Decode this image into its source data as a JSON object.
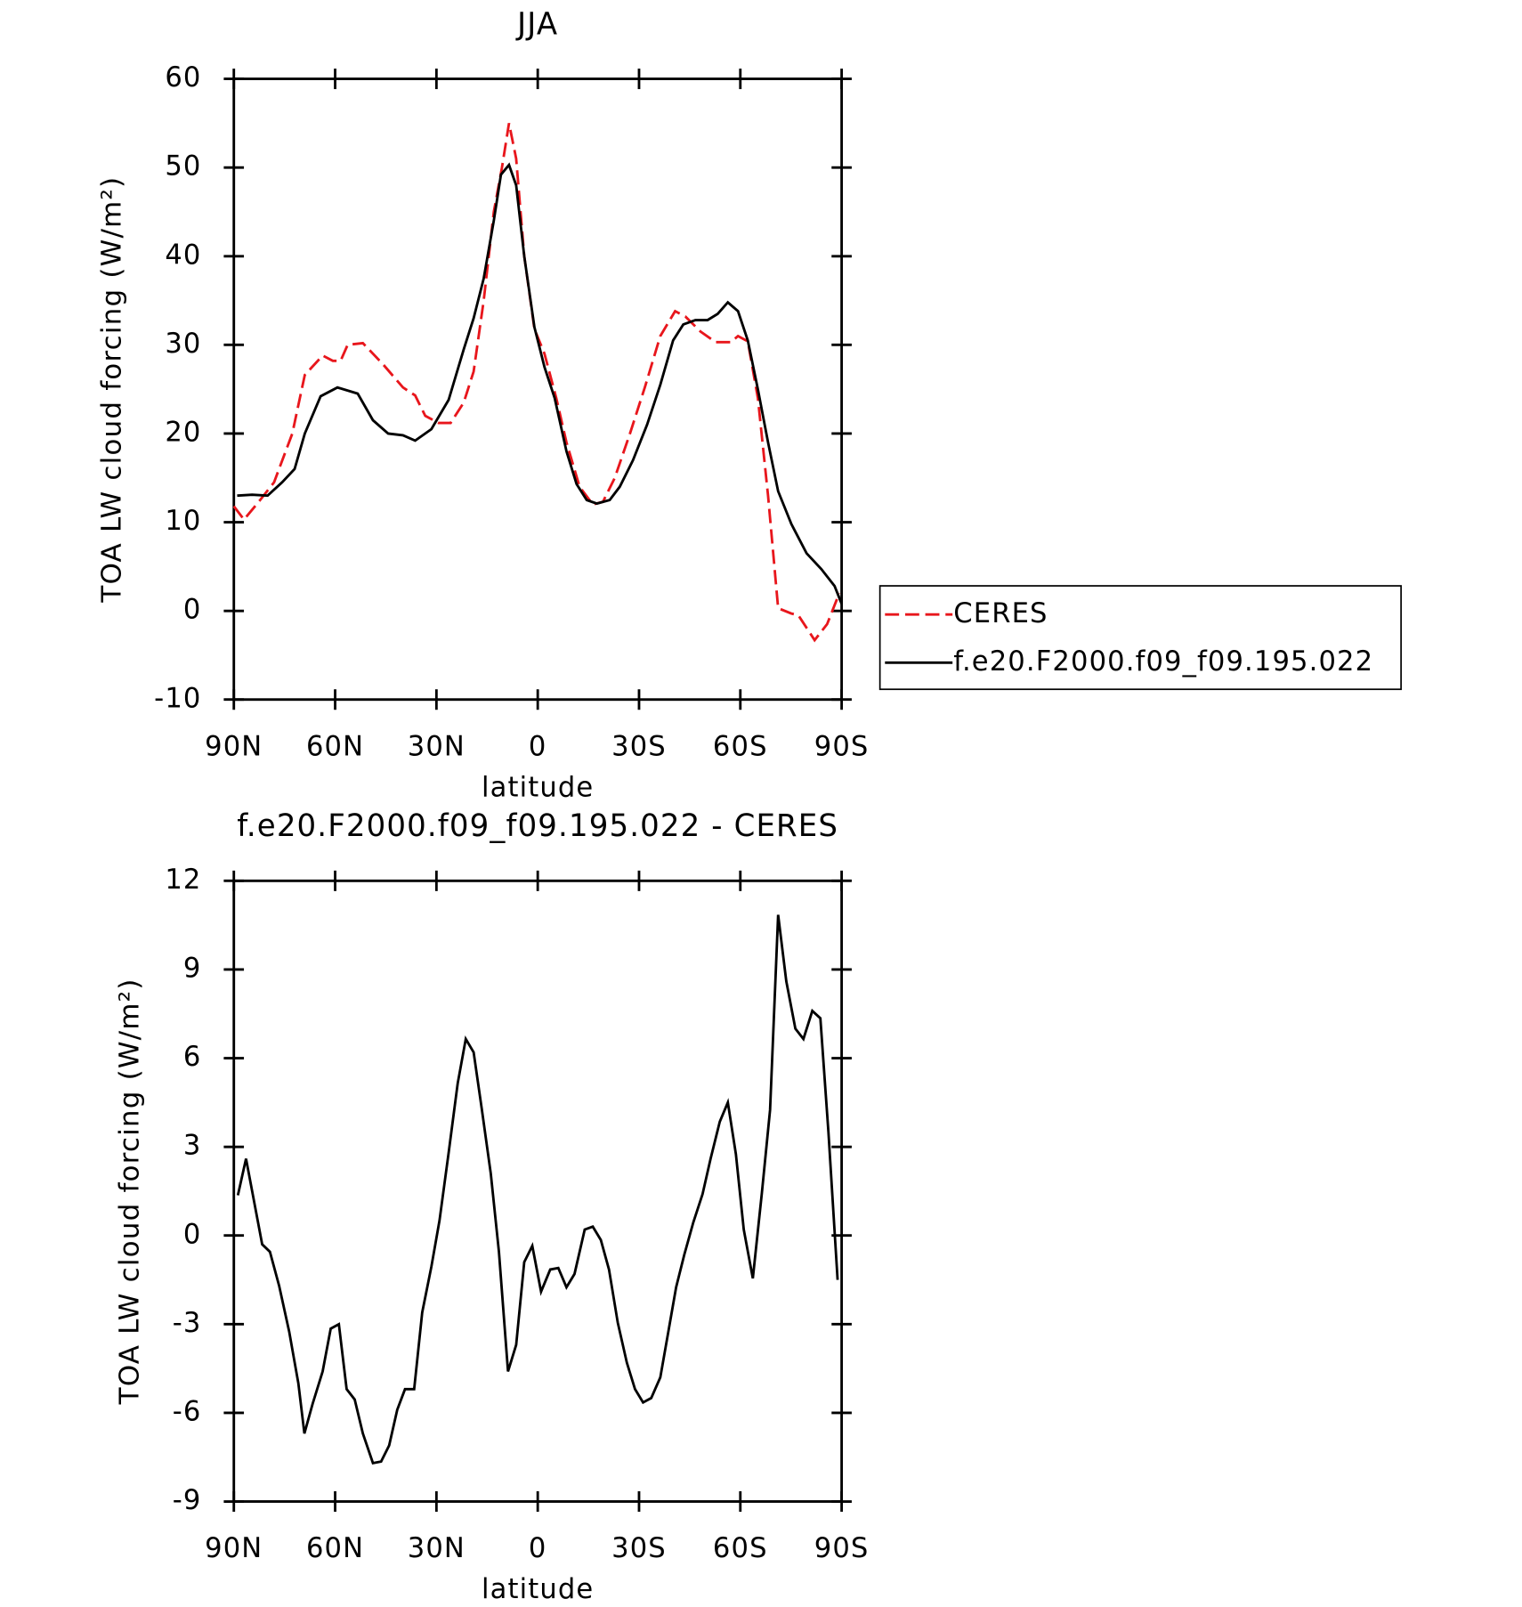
{
  "chart_data": [
    {
      "type": "line",
      "title": "JJA",
      "x_label": "latitude",
      "y_label": "TOA LW cloud forcing (W/m²)",
      "xlim": [
        90,
        -90
      ],
      "xticks": [
        {
          "value": 90,
          "label": "90N"
        },
        {
          "value": 60,
          "label": "60N"
        },
        {
          "value": 30,
          "label": "30N"
        },
        0,
        {
          "value": -30,
          "label": "30S"
        },
        {
          "value": -60,
          "label": "60S"
        },
        {
          "value": -90,
          "label": "90S"
        }
      ],
      "ylim": [
        -10,
        60
      ],
      "yticks": [
        -10,
        0,
        10,
        20,
        30,
        40,
        50,
        60
      ],
      "legend": "right",
      "series": [
        {
          "name": "CERES",
          "color": "#e8161c",
          "dash": true,
          "x": [
            90,
            87,
            82.2,
            78.1,
            72.7,
            69,
            63.7,
            60.7,
            58.4,
            56.3,
            51.8,
            45.8,
            39.9,
            36.3,
            33.3,
            29.4,
            25.8,
            21.9,
            19,
            16,
            13,
            10.6,
            8.5,
            6.4,
            4,
            1,
            -2,
            -5.5,
            -8.5,
            -12.4,
            -16.3,
            -19.3,
            -22.8,
            -27.3,
            -31.8,
            -36.3,
            -40.7,
            -43.7,
            -48.2,
            -52.7,
            -57.2,
            -59.3,
            -62.2,
            -65.2,
            -68.2,
            -71.2,
            -75.1,
            -77.2,
            -82,
            -85.7,
            -89.3
          ],
          "values": [
            11.8,
            10.3,
            12.5,
            14.5,
            20,
            26.6,
            28.8,
            28.2,
            28.2,
            30,
            30.2,
            27.8,
            25.2,
            24.3,
            22,
            21.2,
            21.2,
            23.5,
            27,
            35,
            45,
            50,
            55,
            51,
            40,
            31.8,
            29,
            24,
            19,
            14,
            12,
            12.3,
            15,
            20,
            25.3,
            31,
            33.8,
            33.2,
            31.5,
            30.3,
            30.3,
            31,
            30.4,
            24,
            13,
            0.3,
            -0.3,
            -0.5,
            -3.3,
            -1.5,
            2
          ]
        },
        {
          "name": "f.e20.F2000.f09_f09.195.022",
          "color": "#000000",
          "dash": false,
          "x": [
            89,
            84.6,
            80,
            75.7,
            72,
            69,
            64.3,
            59.3,
            53.3,
            48.8,
            44.3,
            39.9,
            36.3,
            31.5,
            26.4,
            21.9,
            19,
            16,
            13,
            10.9,
            8.5,
            6.4,
            4,
            1,
            -2,
            -5,
            -8.5,
            -11.5,
            -14.5,
            -17.5,
            -21.3,
            -24.3,
            -28.2,
            -32.4,
            -36.3,
            -40.1,
            -43.1,
            -46.7,
            -50.3,
            -53.3,
            -56.3,
            -59.3,
            -62.2,
            -65.2,
            -68.2,
            -71.2,
            -75.1,
            -79.6,
            -84,
            -87.9,
            -90
          ],
          "values": [
            13,
            13.1,
            13,
            14.5,
            16,
            20,
            24.2,
            25.2,
            24.5,
            21.5,
            20,
            19.8,
            19.2,
            20.5,
            23.8,
            29.5,
            33,
            37.5,
            44,
            49.2,
            50.3,
            48,
            40,
            32,
            27.5,
            24,
            18,
            14.3,
            12.5,
            12.1,
            12.5,
            14,
            17,
            21,
            25.5,
            30.5,
            32.3,
            32.8,
            32.8,
            33.5,
            34.8,
            33.8,
            30.5,
            25,
            19,
            13.5,
            9.8,
            6.5,
            4.7,
            2.8,
            0.8
          ]
        }
      ]
    },
    {
      "type": "line",
      "title": "f.e20.F2000.f09_f09.195.022 - CERES",
      "x_label": "latitude",
      "y_label": "TOA LW cloud forcing (W/m²)",
      "xlim": [
        90,
        -90
      ],
      "xticks": [
        {
          "value": 90,
          "label": "90N"
        },
        {
          "value": 60,
          "label": "60N"
        },
        {
          "value": 30,
          "label": "30N"
        },
        0,
        {
          "value": -30,
          "label": "30S"
        },
        {
          "value": -60,
          "label": "60S"
        },
        {
          "value": -90,
          "label": "90S"
        }
      ],
      "ylim": [
        -9,
        12
      ],
      "yticks": [
        -9,
        -6,
        -3,
        0,
        3,
        6,
        9,
        12
      ],
      "color": "#000000",
      "x": [
        88.8,
        86.4,
        81.6,
        79.3,
        76.6,
        73.6,
        70.9,
        69.1,
        66.7,
        63.7,
        61.3,
        58.9,
        56.6,
        54.2,
        51.8,
        48.8,
        46.4,
        44,
        41.6,
        39.3,
        36.6,
        34.2,
        31.5,
        29.1,
        26.4,
        23.7,
        21.3,
        19,
        16.6,
        13.9,
        11.5,
        8.8,
        6.4,
        4,
        1.6,
        -1,
        -3.7,
        -6.1,
        -8.5,
        -10.9,
        -13.9,
        -16.3,
        -18.7,
        -21.1,
        -23.7,
        -26.4,
        -28.8,
        -31.2,
        -33.6,
        -36.3,
        -38.7,
        -41,
        -43.4,
        -46.1,
        -48.8,
        -51.2,
        -53.9,
        -56.3,
        -58.7,
        -61,
        -63.7,
        -66.4,
        -68.8,
        -71.2,
        -73.6,
        -76.3,
        -78.7,
        -81.3,
        -83.7,
        -86.1,
        -88.8
      ],
      "values": [
        1.36,
        2.6,
        -0.3,
        -0.55,
        -1.7,
        -3.25,
        -5,
        -6.7,
        -5.7,
        -4.6,
        -3.15,
        -3,
        -5.2,
        -5.55,
        -6.7,
        -7.7,
        -7.65,
        -7.1,
        -5.9,
        -5.2,
        -5.2,
        -2.6,
        -1.05,
        0.5,
        2.8,
        5.15,
        6.65,
        6.2,
        4.3,
        2.1,
        -0.55,
        -4.6,
        -3.7,
        -0.9,
        -0.35,
        -1.9,
        -1.15,
        -1.1,
        -1.75,
        -1.3,
        0.2,
        0.3,
        -0.15,
        -1.15,
        -2.95,
        -4.3,
        -5.2,
        -5.65,
        -5.5,
        -4.8,
        -3.25,
        -1.75,
        -0.65,
        0.45,
        1.4,
        2.6,
        3.85,
        4.5,
        2.75,
        0.2,
        -1.45,
        1.45,
        4.25,
        10.85,
        8.6,
        7,
        6.65,
        7.6,
        7.35,
        3.5,
        -1.5
      ]
    }
  ]
}
